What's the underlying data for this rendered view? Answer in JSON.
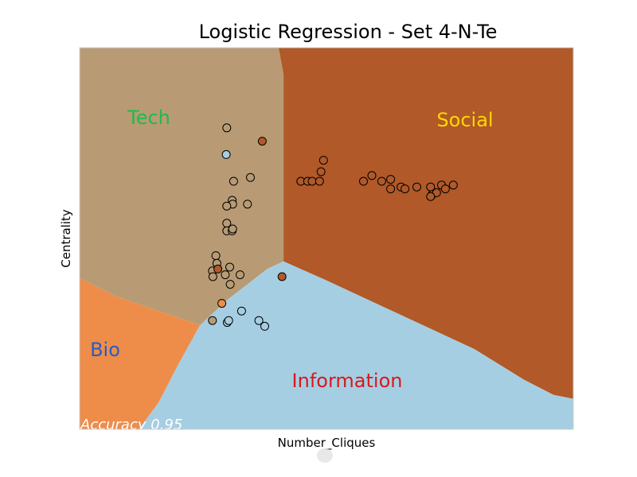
{
  "chart_data": {
    "type": "scatter",
    "title": "Logistic Regression - Set 4-N-Te",
    "xlabel": "Number_Cliques",
    "ylabel": "Centrality",
    "xlim": [
      0,
      100
    ],
    "ylim": [
      0,
      100
    ],
    "grid": false,
    "annotation": "Accuracy 0.95",
    "regions": [
      {
        "name": "Tech",
        "color": "#b89b74",
        "label_color": "#1fba4a"
      },
      {
        "name": "Social",
        "color": "#b15928",
        "label_color": "#ffd700"
      },
      {
        "name": "Bio",
        "color": "#ee8d4a",
        "label_color": "#2b5cbf"
      },
      {
        "name": "Information",
        "color": "#a6cee3",
        "label_color": "#d7191c"
      }
    ],
    "boundary": {
      "tech_social": [
        [
          40.3,
          100
        ],
        [
          41.3,
          93
        ],
        [
          41.3,
          44
        ]
      ],
      "triple_point": [
        41.3,
        44
      ],
      "bio_top": [
        [
          0,
          39.6
        ],
        [
          7,
          35
        ],
        [
          16,
          31
        ],
        [
          24.4,
          27.3
        ]
      ],
      "info_top": [
        [
          24.4,
          27.3
        ],
        [
          30,
          34
        ],
        [
          34,
          38
        ],
        [
          38,
          42
        ],
        [
          41.3,
          44
        ],
        [
          50,
          39
        ],
        [
          60,
          33
        ],
        [
          70,
          27
        ],
        [
          80,
          21
        ],
        [
          90,
          13
        ],
        [
          96,
          9
        ],
        [
          100,
          8
        ]
      ],
      "bio_info": [
        [
          24.4,
          27.3
        ],
        [
          20,
          17
        ],
        [
          16,
          7
        ],
        [
          12,
          0
        ]
      ]
    },
    "series": [
      {
        "name": "Tech",
        "color": "#b89b74",
        "points": [
          [
            29.8,
            79.0
          ],
          [
            31.2,
            65.0
          ],
          [
            34.6,
            66.0
          ],
          [
            30.9,
            60.0
          ],
          [
            31.0,
            59.0
          ],
          [
            29.8,
            58.5
          ],
          [
            34.0,
            59.0
          ],
          [
            29.8,
            54.0
          ],
          [
            29.8,
            52.0
          ],
          [
            30.9,
            52.0
          ],
          [
            31.0,
            52.5
          ],
          [
            27.6,
            45.5
          ],
          [
            27.8,
            43.5
          ],
          [
            30.4,
            42.5
          ],
          [
            26.9,
            41.5
          ],
          [
            30.5,
            38.0
          ],
          [
            32.5,
            40.5
          ],
          [
            29.5,
            40.5
          ],
          [
            27.0,
            40.0
          ],
          [
            26.9,
            28.5
          ]
        ]
      },
      {
        "name": "Social",
        "color": "#b15928",
        "points": [
          [
            44.8,
            65.0
          ],
          [
            46.2,
            65.0
          ],
          [
            47.1,
            65.0
          ],
          [
            48.6,
            65.0
          ],
          [
            48.9,
            67.5
          ],
          [
            49.4,
            70.5
          ],
          [
            57.5,
            65.0
          ],
          [
            59.2,
            66.5
          ],
          [
            61.2,
            65.0
          ],
          [
            63.0,
            65.5
          ],
          [
            63.0,
            63.0
          ],
          [
            65.1,
            63.5
          ],
          [
            65.9,
            63.0
          ],
          [
            68.3,
            63.5
          ],
          [
            71.1,
            63.5
          ],
          [
            71.4,
            61.5
          ],
          [
            72.3,
            62.0
          ],
          [
            73.3,
            64.0
          ],
          [
            74.1,
            63.0
          ],
          [
            75.7,
            64.0
          ],
          [
            71.1,
            61.0
          ],
          [
            37.0,
            75.5
          ],
          [
            28.0,
            42.0
          ],
          [
            41.0,
            40.0
          ]
        ]
      },
      {
        "name": "Bio",
        "color": "#ee8d4a",
        "points": [
          [
            28.8,
            33.0
          ]
        ]
      },
      {
        "name": "Information",
        "color": "#a6cee3",
        "points": [
          [
            29.7,
            72.0
          ],
          [
            29.9,
            28.0
          ],
          [
            30.2,
            28.5
          ],
          [
            32.8,
            31.0
          ],
          [
            36.3,
            28.5
          ],
          [
            37.5,
            27.0
          ]
        ]
      }
    ]
  }
}
